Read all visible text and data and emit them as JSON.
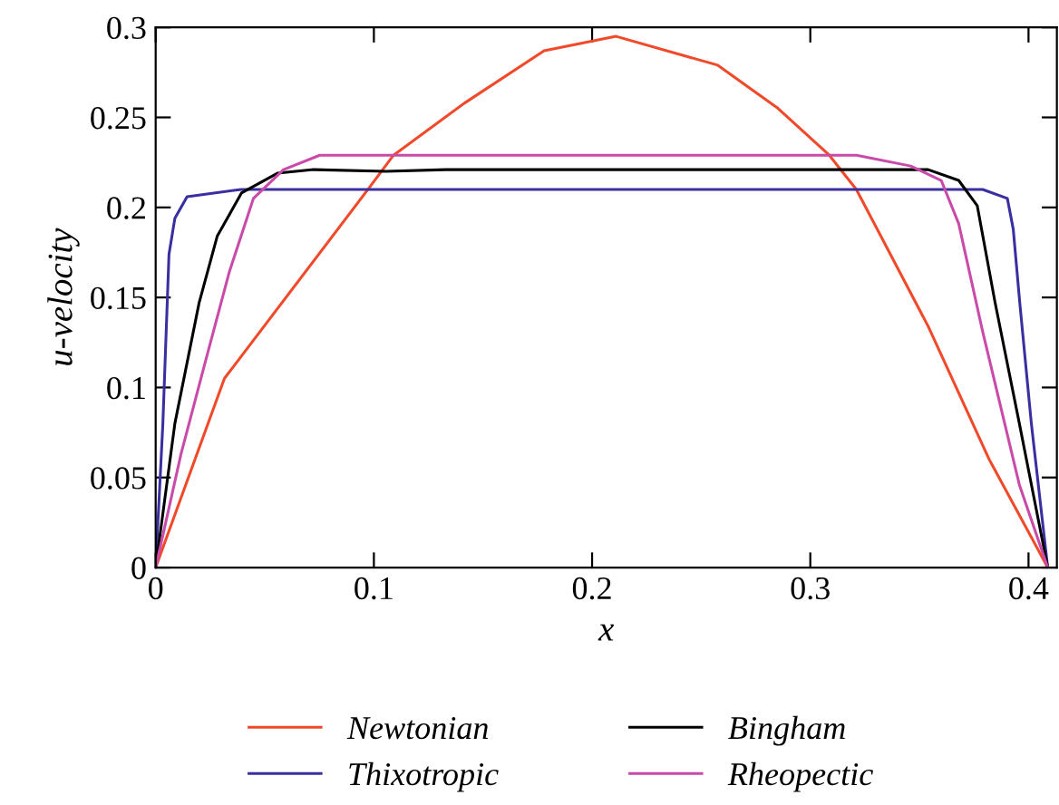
{
  "chart_data": {
    "type": "line",
    "xlabel": "x",
    "ylabel": "u-velocity",
    "xlim": [
      0,
      0.413
    ],
    "ylim": [
      0,
      0.3
    ],
    "xticks": [
      0,
      0.1,
      0.2,
      0.3,
      0.4
    ],
    "yticks": [
      0,
      {
        "value": 0.05,
        "label": "0.05"
      },
      0.1,
      0.15,
      0.2,
      0.25,
      0.3
    ],
    "grid": false,
    "legend": "bottom",
    "marker": "none",
    "line_style": "solid",
    "series": [
      {
        "name": "Newtonian",
        "color": "#f04a2a",
        "x": [
          0,
          0.0315,
          0.0973,
          0.109,
          0.1416,
          0.178,
          0.211,
          0.2576,
          0.2852,
          0.3087,
          0.3211,
          0.354,
          0.382,
          0.4088
        ],
        "values": [
          0,
          0.105,
          0.21,
          0.229,
          0.258,
          0.287,
          0.295,
          0.279,
          0.255,
          0.229,
          0.21,
          0.134,
          0.06,
          0
        ]
      },
      {
        "name": "Thixotropic",
        "color": "#3a2fa0",
        "x": [
          0,
          0.0033,
          0.0061,
          0.0088,
          0.0144,
          0.0392,
          0.379,
          0.3903,
          0.393,
          0.396,
          0.4013,
          0.4088
        ],
        "values": [
          0,
          0.08,
          0.174,
          0.194,
          0.206,
          0.21,
          0.21,
          0.205,
          0.188,
          0.147,
          0.08,
          0
        ]
      },
      {
        "name": "Bingham",
        "color": "#000000",
        "x": [
          0,
          0.0088,
          0.0199,
          0.0282,
          0.0393,
          0.0558,
          0.0724,
          0.1055,
          0.133,
          0.354,
          0.368,
          0.3765,
          0.3847,
          0.3958,
          0.4088
        ],
        "values": [
          0,
          0.08,
          0.147,
          0.184,
          0.208,
          0.219,
          0.221,
          0.22,
          0.221,
          0.221,
          0.215,
          0.201,
          0.147,
          0.08,
          0
        ]
      },
      {
        "name": "Rheopectic",
        "color": "#c94aa8",
        "x": [
          0,
          0.0116,
          0.0227,
          0.0337,
          0.0448,
          0.0586,
          0.0752,
          0.3212,
          0.346,
          0.36,
          0.368,
          0.379,
          0.3958,
          0.4088
        ],
        "values": [
          0,
          0.063,
          0.114,
          0.164,
          0.205,
          0.221,
          0.229,
          0.229,
          0.223,
          0.215,
          0.191,
          0.131,
          0.046,
          0
        ]
      }
    ]
  }
}
